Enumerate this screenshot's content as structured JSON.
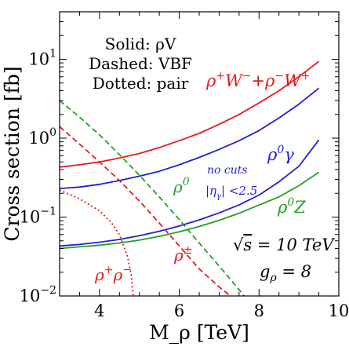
{
  "chart_data": {
    "type": "line",
    "title": "",
    "xlabel": "M_ρ [TeV]",
    "ylabel": "Cross section [fb]",
    "xlim": [
      3,
      10
    ],
    "ylim": [
      0.01,
      40
    ],
    "yscale": "log",
    "grid": false,
    "x_ticks": [
      {
        "value": 4,
        "label": "4"
      },
      {
        "value": 6,
        "label": "6"
      },
      {
        "value": 8,
        "label": "8"
      },
      {
        "value": 10,
        "label": "10"
      }
    ],
    "y_ticks": [
      {
        "value": 0.01,
        "base": "10",
        "exp": "−2"
      },
      {
        "value": 0.1,
        "base": "10",
        "exp": "−1"
      },
      {
        "value": 1,
        "base": "10",
        "exp": "0"
      },
      {
        "value": 10,
        "base": "10",
        "exp": "1"
      }
    ],
    "legend_lines": [
      "Solid: ρV",
      "Dashed: VBF",
      "Dotted: pair"
    ],
    "colors": {
      "red": "#e31a1c",
      "blue": "#1f1fd6",
      "green": "#22a022"
    },
    "series": [
      {
        "key": "rhoWW",
        "color": "red",
        "dash": "solid",
        "x": [
          3,
          3.5,
          4,
          4.5,
          5,
          5.5,
          6,
          6.5,
          7,
          7.5,
          8,
          8.5,
          9,
          9.5
        ],
        "y": [
          0.43,
          0.46,
          0.5,
          0.56,
          0.64,
          0.76,
          0.93,
          1.15,
          1.5,
          2.0,
          2.8,
          4.0,
          6.0,
          9.4
        ]
      },
      {
        "key": "rhoGamma",
        "color": "blue",
        "dash": "solid",
        "x": [
          3,
          3.5,
          4,
          4.5,
          5,
          5.5,
          6,
          6.5,
          7,
          7.5,
          8,
          8.5,
          9,
          9.5
        ],
        "y": [
          0.23,
          0.24,
          0.26,
          0.29,
          0.33,
          0.38,
          0.46,
          0.57,
          0.72,
          0.93,
          1.25,
          1.8,
          2.7,
          4.3
        ]
      },
      {
        "key": "rhoGammaCut",
        "color": "blue",
        "dash": "solid",
        "x": [
          3,
          3.5,
          4,
          4.5,
          5,
          5.5,
          6,
          6.5,
          7,
          7.5,
          8,
          8.5,
          9,
          9.5
        ],
        "y": [
          0.043,
          0.045,
          0.048,
          0.052,
          0.058,
          0.066,
          0.077,
          0.092,
          0.113,
          0.143,
          0.19,
          0.28,
          0.44,
          0.95
        ]
      },
      {
        "key": "rhoZ",
        "color": "green",
        "dash": "solid",
        "x": [
          3,
          3.5,
          4,
          4.5,
          5,
          5.5,
          6,
          6.5,
          7,
          7.5,
          8,
          8.5,
          9,
          9.5
        ],
        "y": [
          0.04,
          0.042,
          0.044,
          0.047,
          0.051,
          0.057,
          0.065,
          0.076,
          0.091,
          0.112,
          0.142,
          0.18,
          0.25,
          0.37
        ]
      },
      {
        "key": "rho0VBF",
        "color": "green",
        "dash": "dashed",
        "x": [
          3,
          3.5,
          4,
          4.5,
          5,
          5.5,
          6,
          6.5,
          7,
          7.5,
          7.7
        ],
        "y": [
          3.0,
          1.85,
          1.1,
          0.62,
          0.34,
          0.18,
          0.093,
          0.047,
          0.024,
          0.012,
          0.009
        ]
      },
      {
        "key": "rhoPmVBF",
        "color": "red",
        "dash": "dashed",
        "x": [
          3,
          3.5,
          4,
          4.5,
          5,
          5.5,
          6,
          6.5,
          7,
          7.4
        ],
        "y": [
          1.4,
          0.84,
          0.5,
          0.29,
          0.16,
          0.084,
          0.043,
          0.022,
          0.013,
          0.009
        ]
      },
      {
        "key": "rhoPair",
        "color": "red",
        "dash": "dotted",
        "x": [
          3,
          3.5,
          4,
          4.3,
          4.5,
          4.7,
          4.8,
          4.85
        ],
        "y": [
          0.22,
          0.17,
          0.12,
          0.085,
          0.06,
          0.032,
          0.018,
          0.009
        ]
      }
    ],
    "annotations": [
      {
        "key": "rhoWW",
        "color": "red",
        "parts": [
          {
            "t": "ρ"
          },
          {
            "t": "+",
            "sup": true
          },
          {
            "t": "W"
          },
          {
            "t": "−",
            "sup": true
          },
          {
            "t": "+ρ"
          },
          {
            "t": "−",
            "sup": true
          },
          {
            "t": "W"
          },
          {
            "t": "+",
            "sup": true
          }
        ]
      },
      {
        "key": "rhoGamma",
        "color": "blue",
        "parts": [
          {
            "t": "ρ"
          },
          {
            "t": "0",
            "sup": true
          },
          {
            "t": "γ"
          }
        ]
      },
      {
        "key": "rhoZ",
        "color": "green",
        "parts": [
          {
            "t": "ρ"
          },
          {
            "t": "0",
            "sup": true
          },
          {
            "t": "Z"
          }
        ]
      },
      {
        "key": "rho0",
        "color": "green",
        "parts": [
          {
            "t": "ρ"
          },
          {
            "t": "0",
            "sup": true
          }
        ]
      },
      {
        "key": "rhoPm",
        "color": "red",
        "parts": [
          {
            "t": "ρ"
          },
          {
            "t": "±",
            "sup": true
          }
        ]
      },
      {
        "key": "rhoPair",
        "color": "red",
        "parts": [
          {
            "t": "ρ"
          },
          {
            "t": "+",
            "sup": true
          },
          {
            "t": "ρ"
          },
          {
            "t": "−",
            "sup": true
          }
        ]
      },
      {
        "key": "nocuts",
        "color": "blue",
        "parts": [
          {
            "t": "no cuts"
          }
        ]
      },
      {
        "key": "etacut",
        "color": "blue",
        "parts": [
          {
            "t": "|η"
          },
          {
            "t": "γ",
            "sub": true
          },
          {
            "t": "| <2.5"
          }
        ]
      },
      {
        "key": "sqrts",
        "color": "black",
        "parts": [
          {
            "t": "√"
          },
          {
            "t": "s",
            "over": true
          },
          {
            "t": " = 10 TeV"
          }
        ]
      },
      {
        "key": "grho",
        "color": "black",
        "parts": [
          {
            "t": "g"
          },
          {
            "t": "ρ",
            "sub": true
          },
          {
            "t": " = 8"
          }
        ]
      }
    ]
  }
}
